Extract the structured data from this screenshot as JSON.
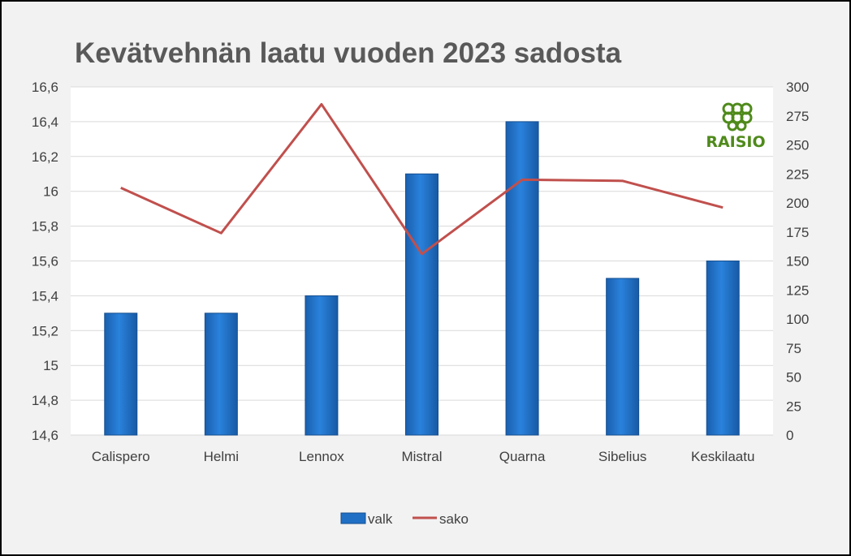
{
  "chart_data": {
    "type": "bar",
    "title": "Kevätvehnän laatu vuoden 2023 sadosta",
    "categories": [
      "Calispero",
      "Helmi",
      "Lennox",
      "Mistral",
      "Quarna",
      "Sibelius",
      "Keskilaatu"
    ],
    "series": [
      {
        "name": "valk",
        "type": "bar",
        "axis": "left",
        "color": "#1f6fc5",
        "values": [
          15.3,
          15.3,
          15.4,
          16.1,
          16.4,
          15.5,
          15.6
        ]
      },
      {
        "name": "sako",
        "type": "line",
        "axis": "right",
        "color": "#c0504d",
        "values": [
          213,
          174,
          285,
          156,
          220,
          219,
          196
        ]
      }
    ],
    "y_left": {
      "min": 14.6,
      "max": 16.6,
      "ticks": [
        "16,6",
        "16,4",
        "16,2",
        "16",
        "15,8",
        "15,6",
        "15,4",
        "15,2",
        "15",
        "14,8",
        "14,6"
      ]
    },
    "y_right": {
      "min": 0,
      "max": 300,
      "ticks": [
        "300",
        "275",
        "250",
        "225",
        "200",
        "175",
        "150",
        "125",
        "100",
        "75",
        "50",
        "25",
        "0"
      ]
    },
    "grid": true,
    "legend_position": "bottom"
  },
  "logo": {
    "text": "RAISIO",
    "icon": "raisio-grain-logo-icon",
    "color": "#4f8a1b"
  }
}
